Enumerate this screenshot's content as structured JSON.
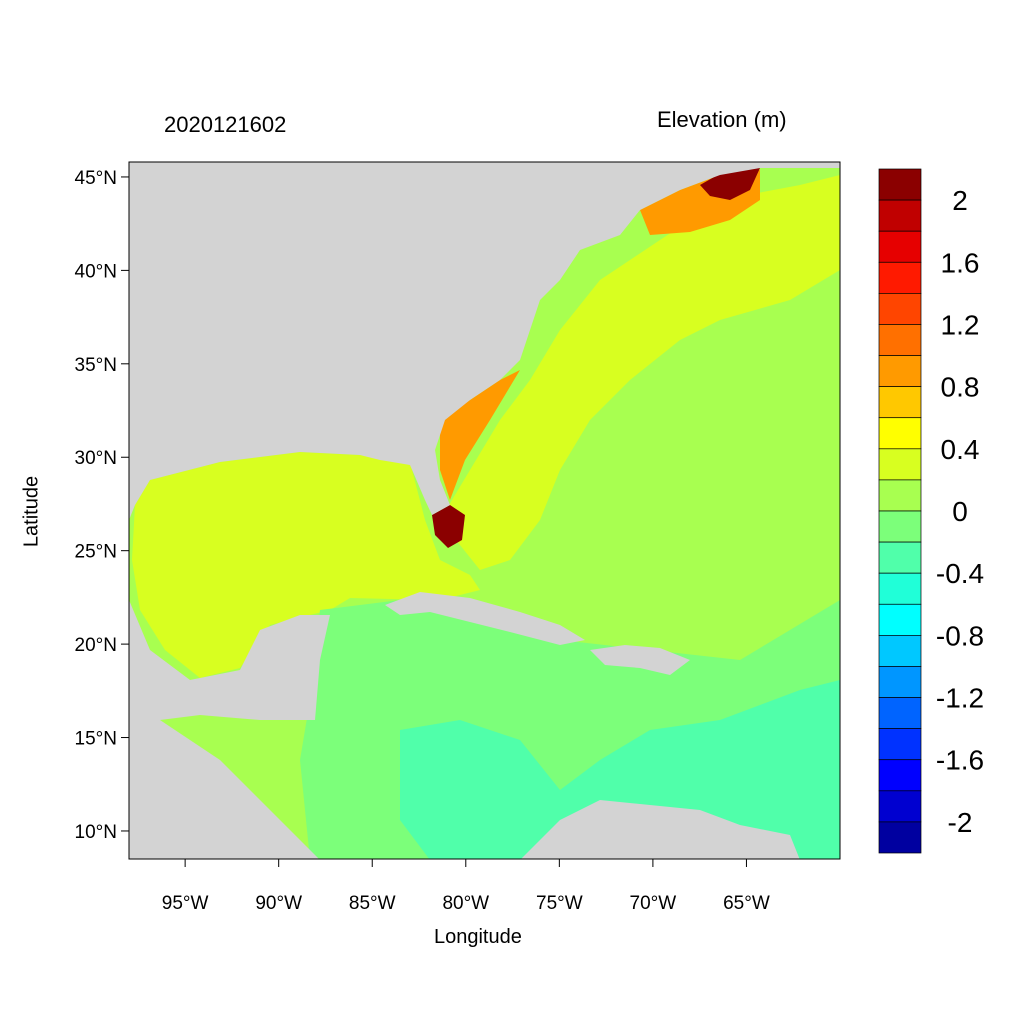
{
  "titles": {
    "left": "2020121602",
    "right": "Elevation (m)"
  },
  "axes": {
    "xlabel": "Longitude",
    "ylabel": "Latitude",
    "xticks": [
      {
        "value": -95,
        "label": "95°W"
      },
      {
        "value": -90,
        "label": "90°W"
      },
      {
        "value": -85,
        "label": "85°W"
      },
      {
        "value": -80,
        "label": "80°W"
      },
      {
        "value": -75,
        "label": "75°W"
      },
      {
        "value": -70,
        "label": "70°W"
      },
      {
        "value": -65,
        "label": "65°W"
      }
    ],
    "yticks": [
      {
        "value": 45,
        "label": "45°N"
      },
      {
        "value": 40,
        "label": "40°N"
      },
      {
        "value": 35,
        "label": "35°N"
      },
      {
        "value": 30,
        "label": "30°N"
      },
      {
        "value": 25,
        "label": "25°N"
      },
      {
        "value": 20,
        "label": "20°N"
      },
      {
        "value": 15,
        "label": "15°N"
      },
      {
        "value": 10,
        "label": "10°N"
      }
    ],
    "xlim": [
      -98,
      -60
    ],
    "ylim": [
      8.5,
      45.8
    ]
  },
  "colorbar": {
    "colors": [
      "#8b0000",
      "#c00000",
      "#e60000",
      "#ff1a00",
      "#ff4500",
      "#ff7000",
      "#ff9a00",
      "#ffc800",
      "#ffff00",
      "#d8ff20",
      "#a8ff50",
      "#7cff7a",
      "#50ffaa",
      "#20ffd8",
      "#00ffff",
      "#00c8ff",
      "#0096ff",
      "#0064ff",
      "#0032ff",
      "#0000ff",
      "#0000d0",
      "#0000a0"
    ],
    "labels": [
      "2",
      "1.6",
      "1.2",
      "0.8",
      "0.4",
      "0",
      "-0.4",
      "-0.8",
      "-1.2",
      "-1.6",
      "-2"
    ]
  },
  "map": {
    "land_color": "#d3d3d3",
    "water_base_color": "#a8ff50"
  }
}
